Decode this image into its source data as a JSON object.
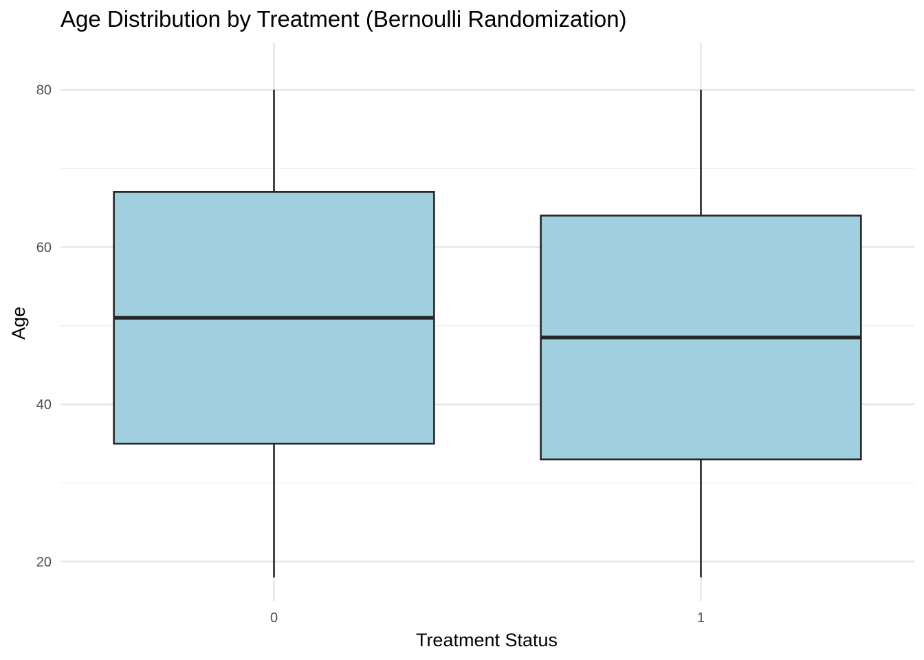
{
  "chart_data": {
    "type": "boxplot",
    "title": "Age Distribution by Treatment (Bernoulli Randomization)",
    "xlabel": "Treatment Status",
    "ylabel": "Age",
    "ylim": [
      15,
      86
    ],
    "y_major_ticks": [
      20,
      40,
      60,
      80
    ],
    "y_minor_ticks": [
      30,
      50,
      70
    ],
    "grid": true,
    "fill_color": "#a0cfe0",
    "stroke_color": "#262626",
    "categories": [
      "0",
      "1"
    ],
    "boxes": [
      {
        "category": "0",
        "min": 18,
        "q1": 35,
        "median": 51,
        "q3": 67,
        "max": 80
      },
      {
        "category": "1",
        "min": 18,
        "q1": 33,
        "median": 48.5,
        "q3": 64,
        "max": 80
      }
    ]
  }
}
